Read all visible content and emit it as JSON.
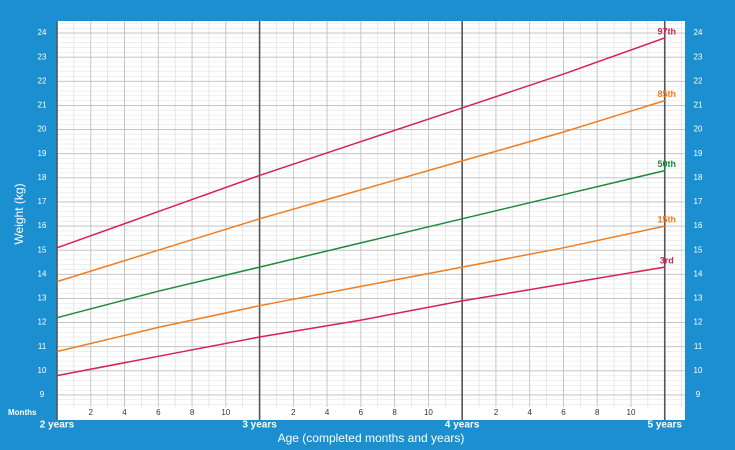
{
  "chart_data": {
    "type": "line",
    "ylabel": "Weight (kg)",
    "xlabel": "Age (completed months and years)",
    "x_unit_label": "Months",
    "x": [
      24,
      30,
      36,
      42,
      48,
      54,
      60
    ],
    "series": [
      {
        "name": "97th",
        "color": "#d6224f",
        "values": [
          15.1,
          16.6,
          18.1,
          19.5,
          20.9,
          22.3,
          23.8
        ]
      },
      {
        "name": "85th",
        "color": "#ef7d22",
        "values": [
          13.7,
          15.0,
          16.3,
          17.5,
          18.7,
          19.9,
          21.2
        ]
      },
      {
        "name": "50th",
        "color": "#1f8a3b",
        "values": [
          12.2,
          13.3,
          14.3,
          15.3,
          16.3,
          17.3,
          18.3
        ]
      },
      {
        "name": "15th",
        "color": "#ef7d22",
        "values": [
          10.8,
          11.8,
          12.7,
          13.5,
          14.3,
          15.1,
          16.0
        ]
      },
      {
        "name": "3rd",
        "color": "#d6224f",
        "values": [
          9.8,
          10.6,
          11.4,
          12.1,
          12.9,
          13.6,
          14.3
        ]
      }
    ],
    "xlim": [
      24,
      61.2
    ],
    "ylim": [
      8.5,
      24.5
    ],
    "yticks": [
      9,
      10,
      11,
      12,
      13,
      14,
      15,
      16,
      17,
      18,
      19,
      20,
      21,
      22,
      23,
      24
    ],
    "xticks": [
      {
        "value": 26,
        "label": "2"
      },
      {
        "value": 28,
        "label": "4"
      },
      {
        "value": 30,
        "label": "6"
      },
      {
        "value": 32,
        "label": "8"
      },
      {
        "value": 34,
        "label": "10"
      },
      {
        "value": 38,
        "label": "2"
      },
      {
        "value": 40,
        "label": "4"
      },
      {
        "value": 42,
        "label": "6"
      },
      {
        "value": 44,
        "label": "8"
      },
      {
        "value": 46,
        "label": "10"
      },
      {
        "value": 50,
        "label": "2"
      },
      {
        "value": 52,
        "label": "4"
      },
      {
        "value": 54,
        "label": "6"
      },
      {
        "value": 56,
        "label": "8"
      },
      {
        "value": 58,
        "label": "10"
      }
    ],
    "x_major_ticks": [
      {
        "value": 24,
        "label": "2 years"
      },
      {
        "value": 36,
        "label": "3 years"
      },
      {
        "value": 48,
        "label": "4 years"
      },
      {
        "value": 60,
        "label": "5 years"
      }
    ],
    "grid": true
  }
}
